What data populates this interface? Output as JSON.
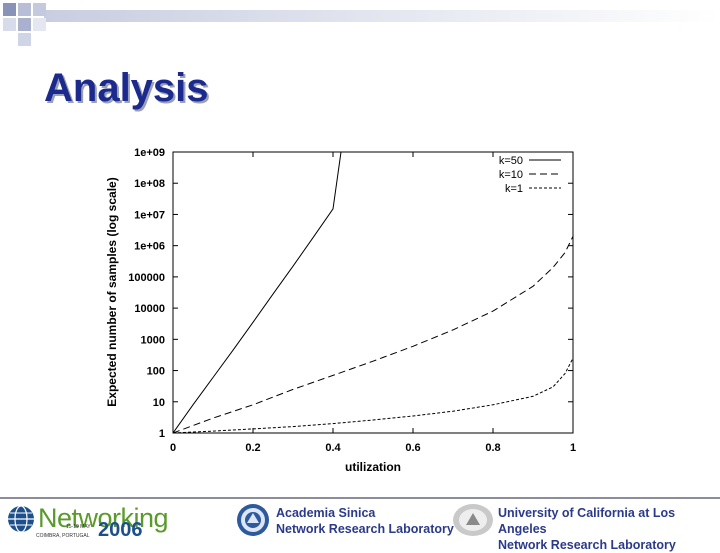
{
  "slide": {
    "title": "Analysis"
  },
  "chart_data": {
    "type": "line",
    "xlabel": "utilization",
    "ylabel": "Expected number of samples (log scale)",
    "x_scale": "linear",
    "y_scale": "log",
    "xlim": [
      0,
      1
    ],
    "ylim": [
      1,
      1000000000
    ],
    "x_ticks": [
      "0",
      "0.2",
      "0.4",
      "0.6",
      "0.8",
      "1"
    ],
    "y_ticks": [
      "1",
      "10",
      "100",
      "1000",
      "10000",
      "100000",
      "1e+06",
      "1e+07",
      "1e+08",
      "1e+09"
    ],
    "legend_position": "top-right",
    "grid": false,
    "series": [
      {
        "name": "k=50",
        "style": "solid",
        "x": [
          0,
          0.05,
          0.1,
          0.15,
          0.2,
          0.25,
          0.3,
          0.35,
          0.4,
          0.42
        ],
        "y": [
          1,
          8,
          60,
          450,
          3500,
          28000,
          220000,
          1800000,
          15000000,
          1000000000
        ]
      },
      {
        "name": "k=10",
        "style": "dashed",
        "x": [
          0,
          0.1,
          0.2,
          0.3,
          0.4,
          0.5,
          0.6,
          0.7,
          0.8,
          0.9,
          0.95,
          0.98,
          1.0
        ],
        "y": [
          1,
          3,
          8,
          25,
          70,
          200,
          600,
          2000,
          8000,
          50000,
          200000,
          600000,
          2000000
        ]
      },
      {
        "name": "k=1",
        "style": "dotted",
        "x": [
          0,
          0.1,
          0.2,
          0.3,
          0.4,
          0.5,
          0.6,
          0.7,
          0.8,
          0.9,
          0.95,
          0.98,
          1.0
        ],
        "y": [
          1,
          1.15,
          1.35,
          1.6,
          2,
          2.6,
          3.5,
          5,
          8,
          15,
          30,
          80,
          250
        ]
      }
    ]
  },
  "footer": {
    "conference_name": "Networking",
    "conference_year": "2006",
    "conference_dates": "15-19 MAY",
    "conference_location": "COIMBRA, PORTUGAL",
    "institution_1_line_1": "Academia Sinica",
    "institution_1_line_2": "Network Research Laboratory",
    "institution_2_line_1": "University of California at Los Angeles",
    "institution_2_line_2": "Network Research Laboratory"
  }
}
